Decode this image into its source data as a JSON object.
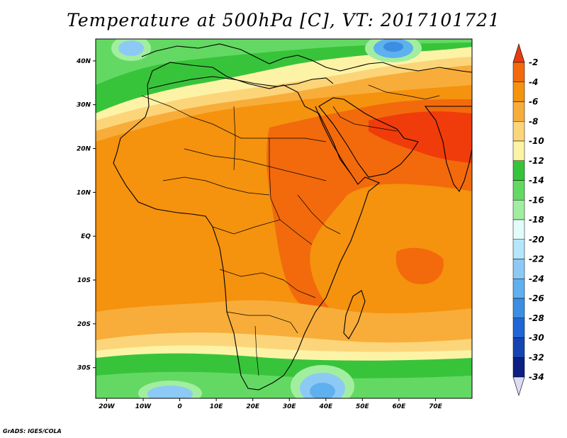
{
  "title": "Temperature at 500hPa [C], VT: 2017101721",
  "credit": "GrADS: IGES/COLA",
  "map": {
    "lon_range": [
      -23,
      80
    ],
    "lat_range": [
      -37,
      45
    ],
    "x_ticks": [
      {
        "lon": -20,
        "label": "20W"
      },
      {
        "lon": -10,
        "label": "10W"
      },
      {
        "lon": 0,
        "label": "0"
      },
      {
        "lon": 10,
        "label": "10E"
      },
      {
        "lon": 20,
        "label": "20E"
      },
      {
        "lon": 30,
        "label": "30E"
      },
      {
        "lon": 40,
        "label": "40E"
      },
      {
        "lon": 50,
        "label": "50E"
      },
      {
        "lon": 60,
        "label": "60E"
      },
      {
        "lon": 70,
        "label": "70E"
      }
    ],
    "y_ticks": [
      {
        "lat": 40,
        "label": "40N"
      },
      {
        "lat": 30,
        "label": "30N"
      },
      {
        "lat": 20,
        "label": "20N"
      },
      {
        "lat": 10,
        "label": "10N"
      },
      {
        "lat": 0,
        "label": "EQ"
      },
      {
        "lat": -10,
        "label": "10S"
      },
      {
        "lat": -20,
        "label": "20S"
      },
      {
        "lat": -30,
        "label": "30S"
      }
    ]
  },
  "colorbar": {
    "levels": [
      "-2",
      "-4",
      "-6",
      "-8",
      "-10",
      "-12",
      "-14",
      "-16",
      "-18",
      "-20",
      "-22",
      "-24",
      "-26",
      "-28",
      "-30",
      "-32",
      "-34"
    ],
    "colors": [
      "#f03c0a",
      "#f26a0c",
      "#f5920e",
      "#f8ad3a",
      "#fcd57a",
      "#fdf3a6",
      "#38c43a",
      "#63d963",
      "#a2eea0",
      "#e2fbfb",
      "#b5e6fb",
      "#8ccaf5",
      "#5fb0ee",
      "#3b8ee2",
      "#1f66d6",
      "#1645b2",
      "#0c1f82"
    ],
    "top_color": "#e63c12",
    "bottom_color": "#dcdcf8"
  },
  "field_zones": [
    {
      "name": "north-green",
      "value": "-14",
      "color": "#38c43a"
    },
    {
      "name": "north-lightgreen",
      "value": "-16",
      "color": "#63d963"
    },
    {
      "name": "south-green",
      "value": "-14",
      "color": "#38c43a"
    },
    {
      "name": "africa-orange",
      "value": "-6",
      "color": "#f5920e"
    },
    {
      "name": "sahel-redorange",
      "value": "-4",
      "color": "#f26a0c"
    },
    {
      "name": "arabia-red",
      "value": "-2",
      "color": "#f03c0a"
    },
    {
      "name": "cold-pockets",
      "value": "-26",
      "color": "#5fb0ee"
    }
  ]
}
